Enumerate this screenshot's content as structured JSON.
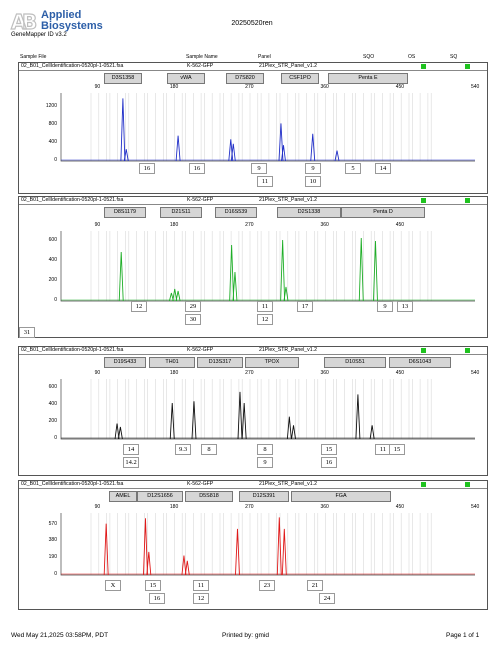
{
  "header": {
    "brand_line1": "Applied",
    "brand_line2": "Biosystems",
    "software": "GeneMapper ID v3.2",
    "title": "20250520ren"
  },
  "columns": {
    "sample_file": "Sample File",
    "sample_name": "Sample Name",
    "panel": "Panel",
    "sqo": "SQO",
    "os": "OS",
    "sq": "SQ"
  },
  "qc_color": "#1fc21f",
  "panels": [
    {
      "sample_file": "02_B01_CellIdentification-0520pl-1-0521.fsa",
      "sample_name": "K-562-GFP",
      "panel": "21Plex_STR_Panel_v1.2",
      "color": "#2230c8",
      "loci": [
        "D3S1358",
        "vWA",
        "D7S820",
        "CSF1PO",
        "Penta E"
      ],
      "x_ticks": [
        "90",
        "180",
        "270",
        "360",
        "450",
        "540"
      ],
      "y_ticks": [
        "1200",
        "800",
        "400",
        "0"
      ],
      "calls_row1": [
        "16",
        "16",
        "9",
        "9",
        "5",
        "14"
      ],
      "calls_row2": [
        "11",
        "10"
      ],
      "chart_data": {
        "type": "line",
        "x_range": [
          45,
          540
        ],
        "y_range": [
          0,
          1500
        ],
        "peaks": [
          {
            "x": 119,
            "y": 1380
          },
          {
            "x": 123,
            "y": 260
          },
          {
            "x": 185,
            "y": 560
          },
          {
            "x": 248,
            "y": 480
          },
          {
            "x": 251,
            "y": 380
          },
          {
            "x": 308,
            "y": 830
          },
          {
            "x": 311,
            "y": 350
          },
          {
            "x": 346,
            "y": 600
          },
          {
            "x": 375,
            "y": 230
          }
        ]
      }
    },
    {
      "sample_file": "02_B01_CellIdentification-0520pl-1-0521.fsa",
      "sample_name": "K-562-GFP",
      "panel": "21Plex_STR_Panel_v1.2",
      "color": "#1fae28",
      "loci": [
        "D8S1179",
        "D21S11",
        "D16S539",
        "D2S1338",
        "Penta D"
      ],
      "x_ticks": [
        "90",
        "180",
        "270",
        "360",
        "450"
      ],
      "y_ticks": [
        "600",
        "400",
        "200",
        "0"
      ],
      "calls_row1": [
        "12",
        "29",
        "11",
        "17",
        "9",
        "13"
      ],
      "calls_row2": [
        "30",
        "12"
      ],
      "calls_row3": [
        "31"
      ],
      "chart_data": {
        "type": "line",
        "x_range": [
          45,
          540
        ],
        "y_range": [
          0,
          700
        ],
        "peaks": [
          {
            "x": 117,
            "y": 490
          },
          {
            "x": 177,
            "y": 80
          },
          {
            "x": 181,
            "y": 120
          },
          {
            "x": 185,
            "y": 100
          },
          {
            "x": 249,
            "y": 560
          },
          {
            "x": 253,
            "y": 290
          },
          {
            "x": 310,
            "y": 610
          },
          {
            "x": 314,
            "y": 140
          },
          {
            "x": 404,
            "y": 630
          },
          {
            "x": 421,
            "y": 600
          }
        ]
      }
    },
    {
      "sample_file": "02_B01_CellIdentification-0520pl-1-0521.fsa",
      "sample_name": "K-562-GFP",
      "panel": "21Plex_STR_Panel_v1.2",
      "color": "#111111",
      "loci": [
        "D19S433",
        "TH01",
        "D13S317",
        "TPOX",
        "D10S51",
        "D6S1043"
      ],
      "x_ticks": [
        "90",
        "180",
        "270",
        "360",
        "450",
        "540"
      ],
      "y_ticks": [
        "600",
        "400",
        "200",
        "0"
      ],
      "calls_row1": [
        "14",
        "9.3",
        "8",
        "8",
        "15",
        "11",
        "15"
      ],
      "calls_row2": [
        "14.2",
        "9",
        "16"
      ],
      "chart_data": {
        "type": "line",
        "x_range": [
          45,
          540
        ],
        "y_range": [
          0,
          700
        ],
        "peaks": [
          {
            "x": 112,
            "y": 180
          },
          {
            "x": 116,
            "y": 140
          },
          {
            "x": 178,
            "y": 420
          },
          {
            "x": 204,
            "y": 440
          },
          {
            "x": 259,
            "y": 550
          },
          {
            "x": 264,
            "y": 420
          },
          {
            "x": 318,
            "y": 260
          },
          {
            "x": 323,
            "y": 160
          },
          {
            "x": 400,
            "y": 520
          },
          {
            "x": 417,
            "y": 160
          }
        ]
      }
    },
    {
      "sample_file": "02_B01_CellIdentification-0520pl-1-0521.fsa",
      "sample_name": "K-562-GFP",
      "panel": "21Plex_STR_Panel_v1.2",
      "color": "#e01818",
      "loci": [
        "AMEL",
        "D12S1656",
        "D5S818",
        "D12S391",
        "FGA"
      ],
      "x_ticks": [
        "90",
        "180",
        "270",
        "360",
        "450",
        "540"
      ],
      "y_ticks": [
        "570",
        "380",
        "190",
        "0"
      ],
      "calls_row1": [
        "X",
        "15",
        "11",
        "23",
        "21"
      ],
      "calls_row2": [
        "16",
        "12",
        "24"
      ],
      "chart_data": {
        "type": "line",
        "x_range": [
          45,
          540
        ],
        "y_range": [
          0,
          700
        ],
        "peaks": [
          {
            "x": 99,
            "y": 580
          },
          {
            "x": 146,
            "y": 640
          },
          {
            "x": 150,
            "y": 260
          },
          {
            "x": 192,
            "y": 220
          },
          {
            "x": 196,
            "y": 160
          },
          {
            "x": 256,
            "y": 520
          },
          {
            "x": 306,
            "y": 650
          },
          {
            "x": 312,
            "y": 520
          }
        ]
      }
    }
  ],
  "footer": {
    "date": "Wed May 21,2025 03:58PM, PDT",
    "printed_by": "Printed by: gmid",
    "page": "Page 1 of 1"
  }
}
